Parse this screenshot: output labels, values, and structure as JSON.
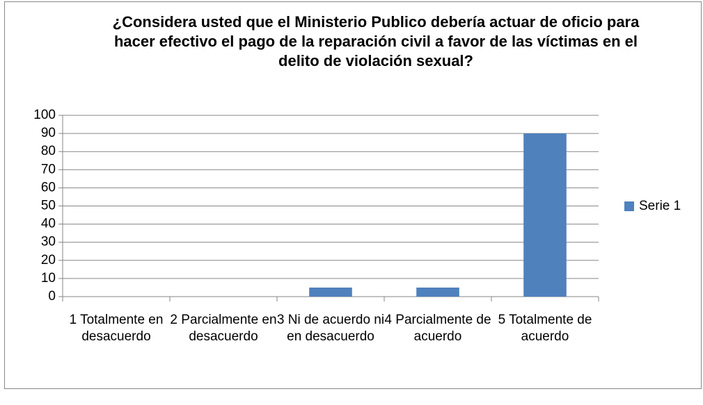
{
  "chart_data": {
    "type": "bar",
    "title": "¿Considera usted que el Ministerio Publico debería actuar de oficio para hacer efectivo el pago de la reparación civil a favor de las víctimas en el delito de violación sexual?",
    "categories": [
      "1 Totalmente en desacuerdo",
      "2 Parcialmente en desacuerdo",
      "3 Ni de acuerdo ni en desacuerdo",
      "4 Parcialmente de acuerdo",
      "5 Totalmente de acuerdo"
    ],
    "series": [
      {
        "name": "Serie 1",
        "color": "#4f81bd",
        "values": [
          0,
          0,
          5,
          5,
          90
        ]
      }
    ],
    "ylim": [
      0,
      100
    ],
    "yticks": [
      0,
      10,
      20,
      30,
      40,
      50,
      60,
      70,
      80,
      90,
      100
    ],
    "grid": true,
    "legend": "right"
  }
}
